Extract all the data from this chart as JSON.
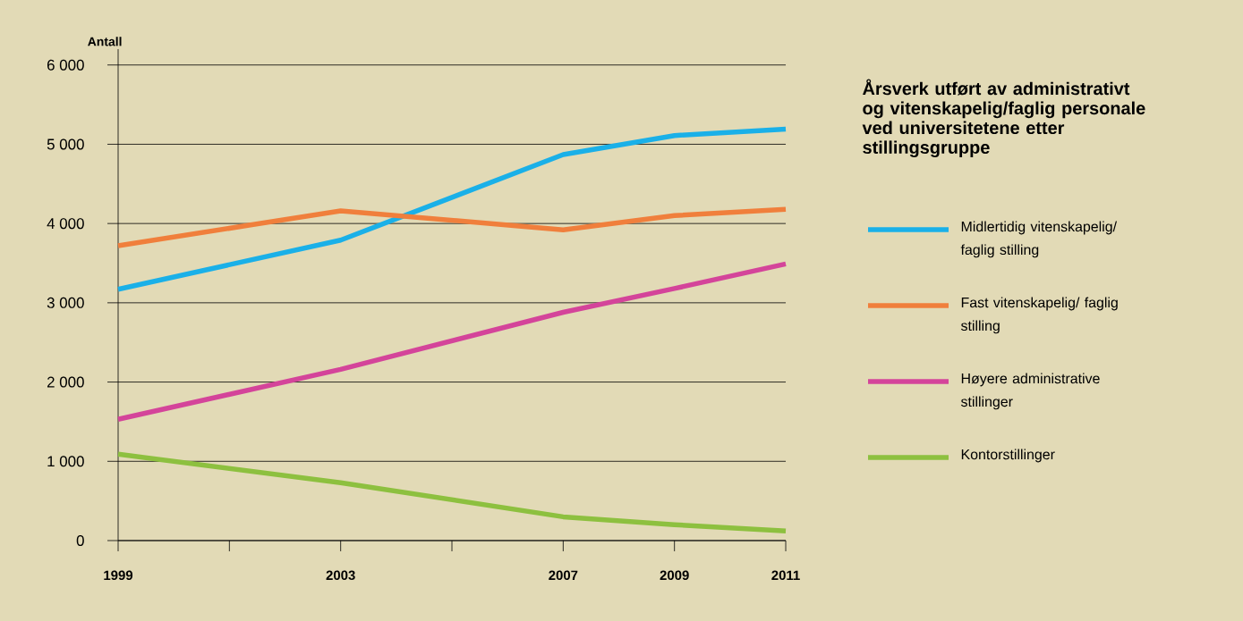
{
  "chart_data": {
    "type": "line",
    "title": "Årsverk utført av administrativt og vitenskapelig/faglig personale ved universitetene etter stillingsgruppe",
    "ylabel": "Antall",
    "x": [
      1999,
      2003,
      2007,
      2009,
      2011
    ],
    "series": [
      {
        "name": "Midlertidig vitenskapelig/ faglig stilling",
        "color": "#1ab0e8",
        "values": [
          3170,
          3790,
          4870,
          5110,
          5190
        ]
      },
      {
        "name": "Fast vitenskapelig/ faglig stilling",
        "color": "#f07f3c",
        "values": [
          3720,
          4160,
          3920,
          4100,
          4180
        ]
      },
      {
        "name": "Høyere administrative stillinger",
        "color": "#d4449a",
        "values": [
          1530,
          2160,
          2880,
          3180,
          3490
        ]
      },
      {
        "name": "Kontorstillinger",
        "color": "#8dc03f",
        "values": [
          1090,
          730,
          300,
          200,
          120
        ]
      }
    ],
    "xlim": [
      1999,
      2011
    ],
    "xticks": [
      1999,
      {
        "value": 2001,
        "label": null
      },
      2003,
      {
        "value": 2005,
        "label": null
      },
      2007,
      2009,
      2011
    ],
    "ylim": [
      0,
      6200
    ],
    "yticks": [
      {
        "value": 0,
        "label": "0"
      },
      {
        "value": 1000,
        "label": "1 000"
      },
      {
        "value": 2000,
        "label": "2 000"
      },
      {
        "value": 3000,
        "label": "3 000"
      },
      {
        "value": 4000,
        "label": "4 000"
      },
      {
        "value": 5000,
        "label": "5 000"
      },
      {
        "value": 6000,
        "label": "6 000"
      }
    ],
    "grid": "y",
    "legend": "right"
  }
}
